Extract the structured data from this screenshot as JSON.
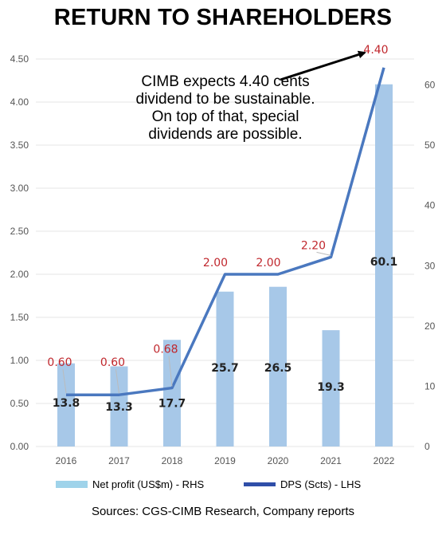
{
  "title": "RETURN TO SHAREHOLDERS",
  "annotation": "CIMB expects 4.40 cents dividend to be sustainable. On top of that, special dividends are possible.",
  "source": "Sources: CGS-CIMB Research, Company reports",
  "colors": {
    "bar": "#a7c8e8",
    "line": "#4a78bf",
    "dps_label": "#c0272d",
    "profit_label": "#222222",
    "axis_text": "#555555",
    "grid": "#e6e6e6"
  },
  "chart_data": {
    "type": "bar",
    "categories": [
      "2016",
      "2017",
      "2018",
      "2019",
      "2020",
      "2021",
      "2022"
    ],
    "series": [
      {
        "name": "Net profit (US$m) - RHS",
        "type": "bar",
        "axis": "right",
        "values": [
          13.8,
          13.3,
          17.7,
          25.7,
          26.5,
          19.3,
          60.1
        ],
        "labels": [
          "13.8",
          "13.3",
          "17.7",
          "25.7",
          "26.5",
          "19.3",
          "60.1"
        ]
      },
      {
        "name": "DPS (Scts) - LHS",
        "type": "line",
        "axis": "left",
        "values": [
          0.6,
          0.6,
          0.68,
          2.0,
          2.0,
          2.2,
          4.4
        ],
        "labels": [
          "0.60",
          "0.60",
          "0.68",
          "2.00",
          "2.00",
          "2.20",
          "4.40"
        ]
      }
    ],
    "left_axis": {
      "ylim": [
        0,
        4.5
      ],
      "ticks": [
        "0.00",
        "0.50",
        "1.00",
        "1.50",
        "2.00",
        "2.50",
        "3.00",
        "3.50",
        "4.00",
        "4.50"
      ]
    },
    "right_axis": {
      "ylim": [
        0,
        64.3
      ],
      "ticks": [
        "0",
        "10",
        "20",
        "30",
        "40",
        "50",
        "60"
      ]
    },
    "grid": true,
    "legend_position": "bottom"
  }
}
